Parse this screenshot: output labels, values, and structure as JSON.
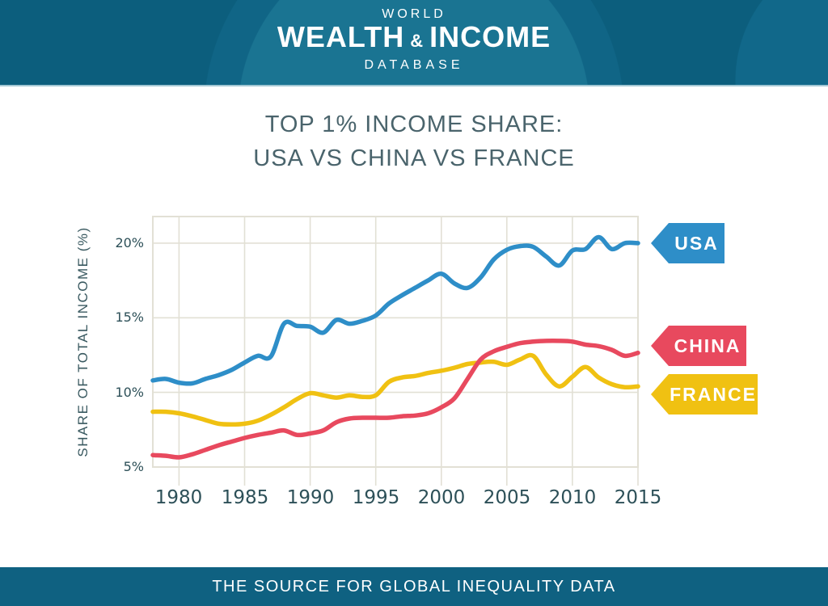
{
  "header": {
    "top": "WORLD",
    "main_left": "WEALTH",
    "amp": "&",
    "main_right": "INCOME",
    "bottom": "DATABASE"
  },
  "title": {
    "line1": "TOP 1% INCOME SHARE:",
    "line2": "USA VS CHINA VS FRANCE"
  },
  "footer": {
    "text": "THE SOURCE FOR GLOBAL INEQUALITY DATA"
  },
  "colors": {
    "header_bg": "#0c5e7d",
    "header_circle": "#1a7492",
    "footer_bg": "#0f6181",
    "title_text": "#4a646c",
    "axis_text": "#2d5058",
    "grid": "#e2e0d5",
    "usa_blue": "#2e8ec8",
    "china_red": "#e8495e",
    "france_yellow": "#f0c112"
  },
  "chart_data": {
    "type": "line",
    "title": "TOP 1% INCOME SHARE: USA VS CHINA VS FRANCE",
    "xlabel": "",
    "ylabel": "SHARE OF TOTAL INCOME (%)",
    "grid": true,
    "legend_position": "right-flags",
    "grid_color": "#e2e0d5",
    "x_range": [
      1978,
      2015
    ],
    "y_range": [
      5,
      21.78
    ],
    "x_ticks": [
      1980,
      1985,
      1990,
      1995,
      2000,
      2005,
      2010,
      2015
    ],
    "x_tick_labels": [
      "1980",
      "1985",
      "1990",
      "1995",
      "2000",
      "2005",
      "2010",
      "2015"
    ],
    "y_ticks": [
      {
        "value": 20,
        "label": "20%"
      },
      {
        "value": 15,
        "label": "15%"
      },
      {
        "value": 10,
        "label": "10%"
      },
      {
        "value": 5,
        "label": "5%"
      }
    ],
    "years": [
      1978,
      1979,
      1980,
      1981,
      1982,
      1983,
      1984,
      1985,
      1986,
      1987,
      1988,
      1989,
      1990,
      1991,
      1992,
      1993,
      1994,
      1995,
      1996,
      1997,
      1998,
      1999,
      2000,
      2001,
      2002,
      2003,
      2004,
      2005,
      2006,
      2007,
      2008,
      2009,
      2010,
      2011,
      2012,
      2013,
      2014,
      2015
    ],
    "series": [
      {
        "name": "USA",
        "color": "#2e8ec8",
        "values": [
          10.8,
          10.9,
          10.65,
          10.6,
          10.9,
          11.15,
          11.5,
          12.0,
          12.45,
          12.4,
          14.6,
          14.45,
          14.4,
          14.0,
          14.85,
          14.6,
          14.8,
          15.15,
          15.95,
          16.5,
          17.0,
          17.5,
          17.95,
          17.3,
          17.0,
          17.7,
          18.9,
          19.55,
          19.8,
          19.75,
          19.1,
          18.5,
          19.5,
          19.6,
          20.4,
          19.6,
          20.0,
          20.0
        ]
      },
      {
        "name": "CHINA",
        "color": "#e8495e",
        "values": [
          5.8,
          5.75,
          5.65,
          5.85,
          6.15,
          6.45,
          6.7,
          6.95,
          7.15,
          7.3,
          7.45,
          7.15,
          7.25,
          7.45,
          8.0,
          8.25,
          8.3,
          8.3,
          8.3,
          8.4,
          8.45,
          8.6,
          9.0,
          9.6,
          10.9,
          12.2,
          12.75,
          13.05,
          13.3,
          13.4,
          13.45,
          13.45,
          13.4,
          13.2,
          13.1,
          12.85,
          12.45,
          12.65
        ]
      },
      {
        "name": "FRANCE",
        "color": "#f0c112",
        "values": [
          8.7,
          8.7,
          8.6,
          8.4,
          8.15,
          7.9,
          7.85,
          7.9,
          8.1,
          8.5,
          9.0,
          9.55,
          9.95,
          9.8,
          9.65,
          9.8,
          9.7,
          9.8,
          10.7,
          11.0,
          11.1,
          11.3,
          11.45,
          11.65,
          11.9,
          12.0,
          12.05,
          11.85,
          12.2,
          12.45,
          11.2,
          10.4,
          11.05,
          11.7,
          11.0,
          10.55,
          10.35,
          10.4
        ]
      }
    ]
  }
}
